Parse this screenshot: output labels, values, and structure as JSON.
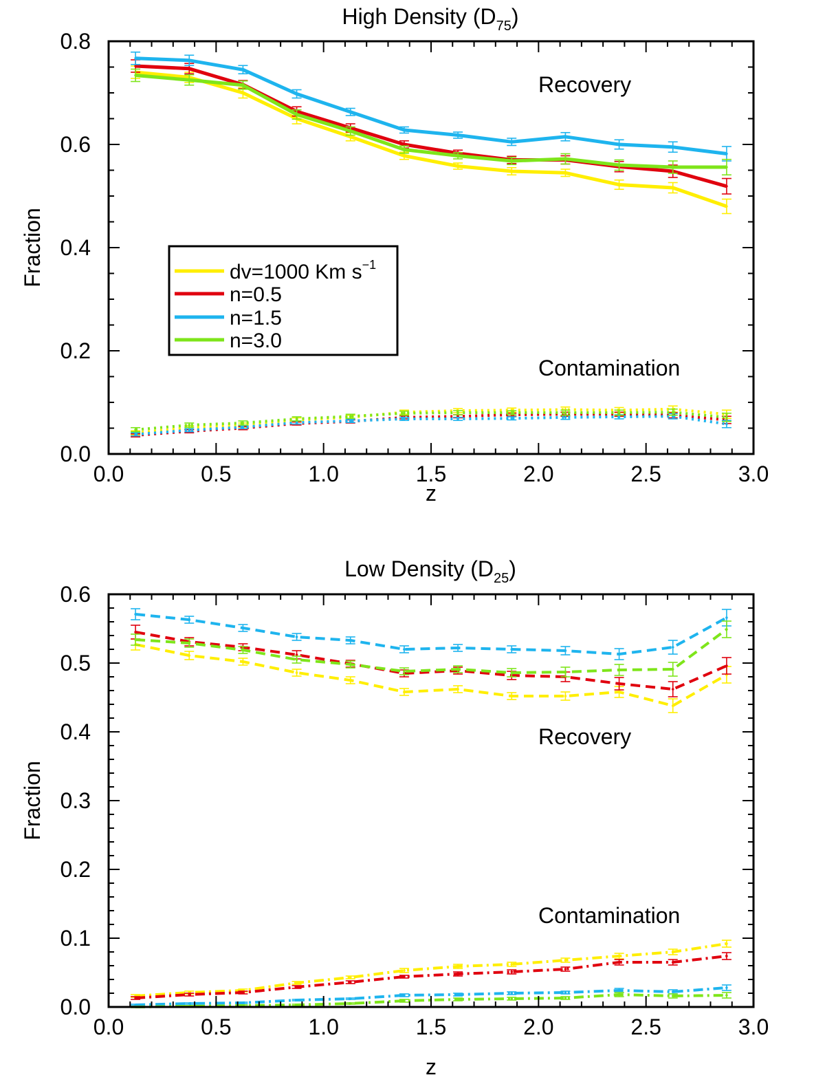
{
  "chart_data": [
    {
      "type": "line",
      "title": "High Density (D",
      "title_subscript": "75",
      "title_close": ")",
      "xlabel": "z",
      "ylabel": "Fraction",
      "xlim": [
        0.0,
        3.0
      ],
      "ylim": [
        0.0,
        0.8
      ],
      "xticks": [
        "0.0",
        "0.5",
        "1.0",
        "1.5",
        "2.0",
        "2.5",
        "3.0"
      ],
      "yticks": [
        "0.0",
        "0.2",
        "0.4",
        "0.6",
        "0.8"
      ],
      "annotations": [
        "Recovery",
        "Contamination"
      ],
      "legend": [
        {
          "label": "dv=1000 Km s",
          "sup": "−1",
          "color": "#ffee00"
        },
        {
          "label": "n=0.5",
          "color": "#e0000e"
        },
        {
          "label": "n=1.5",
          "color": "#1eb4ee"
        },
        {
          "label": "n=3.0",
          "color": "#7ee51a"
        }
      ],
      "x": [
        0.125,
        0.375,
        0.625,
        0.875,
        1.125,
        1.375,
        1.625,
        1.875,
        2.125,
        2.375,
        2.625,
        2.875
      ],
      "series": [
        {
          "name": "dv=1000 Km s-1 recovery",
          "color": "#ffee00",
          "dash": "solid",
          "values": [
            0.74,
            0.73,
            0.7,
            0.65,
            0.615,
            0.578,
            0.558,
            0.548,
            0.545,
            0.522,
            0.516,
            0.48
          ],
          "err": [
            0.012,
            0.01,
            0.01,
            0.01,
            0.008,
            0.007,
            0.006,
            0.007,
            0.007,
            0.009,
            0.01,
            0.014
          ]
        },
        {
          "name": "n=0.5 recovery",
          "color": "#e0000e",
          "dash": "solid",
          "values": [
            0.752,
            0.747,
            0.716,
            0.664,
            0.632,
            0.6,
            0.583,
            0.57,
            0.57,
            0.557,
            0.548,
            0.519
          ],
          "err": [
            0.012,
            0.01,
            0.008,
            0.009,
            0.008,
            0.007,
            0.006,
            0.007,
            0.008,
            0.01,
            0.012,
            0.015
          ]
        },
        {
          "name": "n=1.5 recovery",
          "color": "#1eb4ee",
          "dash": "solid",
          "values": [
            0.767,
            0.763,
            0.745,
            0.698,
            0.663,
            0.628,
            0.618,
            0.605,
            0.615,
            0.6,
            0.595,
            0.582
          ],
          "err": [
            0.012,
            0.01,
            0.008,
            0.008,
            0.007,
            0.006,
            0.006,
            0.007,
            0.008,
            0.009,
            0.01,
            0.014
          ]
        },
        {
          "name": "n=3.0 recovery",
          "color": "#7ee51a",
          "dash": "solid",
          "values": [
            0.734,
            0.725,
            0.715,
            0.658,
            0.626,
            0.59,
            0.578,
            0.568,
            0.572,
            0.56,
            0.556,
            0.556
          ],
          "err": [
            0.012,
            0.01,
            0.008,
            0.009,
            0.008,
            0.007,
            0.006,
            0.007,
            0.01,
            0.01,
            0.012,
            0.015
          ]
        },
        {
          "name": "dv=1000 Km s-1 contamination",
          "color": "#ffee00",
          "dash": "dotted",
          "values": [
            0.041,
            0.051,
            0.056,
            0.066,
            0.071,
            0.081,
            0.084,
            0.085,
            0.086,
            0.085,
            0.087,
            0.077
          ],
          "err": [
            0.004,
            0.004,
            0.004,
            0.004,
            0.004,
            0.004,
            0.004,
            0.004,
            0.005,
            0.005,
            0.006,
            0.008
          ]
        },
        {
          "name": "n=0.5 contamination",
          "color": "#e0000e",
          "dash": "dotted",
          "values": [
            0.036,
            0.044,
            0.05,
            0.059,
            0.063,
            0.071,
            0.073,
            0.076,
            0.077,
            0.077,
            0.075,
            0.066
          ],
          "err": [
            0.003,
            0.003,
            0.003,
            0.003,
            0.003,
            0.003,
            0.003,
            0.003,
            0.004,
            0.004,
            0.005,
            0.007
          ]
        },
        {
          "name": "n=1.5 contamination",
          "color": "#1eb4ee",
          "dash": "dotted",
          "values": [
            0.038,
            0.046,
            0.052,
            0.061,
            0.064,
            0.068,
            0.068,
            0.069,
            0.071,
            0.072,
            0.073,
            0.058
          ],
          "err": [
            0.003,
            0.003,
            0.003,
            0.003,
            0.003,
            0.003,
            0.003,
            0.003,
            0.004,
            0.004,
            0.005,
            0.007
          ]
        },
        {
          "name": "n=3.0 contamination",
          "color": "#7ee51a",
          "dash": "dotted",
          "values": [
            0.047,
            0.056,
            0.06,
            0.068,
            0.073,
            0.079,
            0.08,
            0.08,
            0.08,
            0.08,
            0.081,
            0.071
          ],
          "err": [
            0.004,
            0.004,
            0.004,
            0.004,
            0.004,
            0.004,
            0.004,
            0.004,
            0.005,
            0.005,
            0.006,
            0.008
          ]
        }
      ]
    },
    {
      "type": "line",
      "title": "Low Density (D",
      "title_subscript": "25",
      "title_close": ")",
      "xlabel": "z",
      "ylabel": "Fraction",
      "xlim": [
        0.0,
        3.0
      ],
      "ylim": [
        0.0,
        0.6
      ],
      "xticks": [
        "0.0",
        "0.5",
        "1.0",
        "1.5",
        "2.0",
        "2.5",
        "3.0"
      ],
      "yticks": [
        "0.0",
        "0.1",
        "0.2",
        "0.3",
        "0.4",
        "0.5",
        "0.6"
      ],
      "annotations": [
        "Recovery",
        "Contamination"
      ],
      "x": [
        0.125,
        0.375,
        0.625,
        0.875,
        1.125,
        1.375,
        1.625,
        1.875,
        2.125,
        2.375,
        2.625,
        2.875
      ],
      "series": [
        {
          "name": "dv=1000 Km s-1 recovery",
          "color": "#ffee00",
          "dash": "dashed",
          "values": [
            0.527,
            0.511,
            0.502,
            0.486,
            0.475,
            0.458,
            0.462,
            0.452,
            0.452,
            0.458,
            0.438,
            0.483
          ],
          "err": [
            0.008,
            0.006,
            0.005,
            0.005,
            0.005,
            0.005,
            0.005,
            0.005,
            0.006,
            0.008,
            0.01,
            0.012
          ]
        },
        {
          "name": "n=0.5 recovery",
          "color": "#e0000e",
          "dash": "dashed",
          "values": [
            0.545,
            0.531,
            0.523,
            0.512,
            0.499,
            0.485,
            0.489,
            0.482,
            0.48,
            0.47,
            0.462,
            0.496
          ],
          "err": [
            0.01,
            0.006,
            0.005,
            0.006,
            0.005,
            0.005,
            0.005,
            0.006,
            0.007,
            0.009,
            0.011,
            0.012
          ]
        },
        {
          "name": "n=1.5 recovery",
          "color": "#1eb4ee",
          "dash": "dashed",
          "values": [
            0.571,
            0.563,
            0.551,
            0.538,
            0.533,
            0.52,
            0.522,
            0.52,
            0.518,
            0.513,
            0.523,
            0.566
          ],
          "err": [
            0.008,
            0.005,
            0.005,
            0.005,
            0.005,
            0.005,
            0.005,
            0.005,
            0.006,
            0.008,
            0.01,
            0.012
          ]
        },
        {
          "name": "n=3.0 recovery",
          "color": "#7ee51a",
          "dash": "dashed",
          "values": [
            0.534,
            0.529,
            0.519,
            0.505,
            0.498,
            0.488,
            0.491,
            0.486,
            0.487,
            0.49,
            0.491,
            0.549
          ],
          "err": [
            0.008,
            0.006,
            0.005,
            0.005,
            0.005,
            0.005,
            0.005,
            0.006,
            0.007,
            0.008,
            0.01,
            0.012
          ]
        },
        {
          "name": "dv=1000 Km s-1 contamination",
          "color": "#ffee00",
          "dash": "dashdot",
          "values": [
            0.016,
            0.021,
            0.024,
            0.035,
            0.043,
            0.053,
            0.059,
            0.062,
            0.068,
            0.074,
            0.08,
            0.092
          ],
          "err": [
            0.002,
            0.002,
            0.002,
            0.002,
            0.002,
            0.003,
            0.003,
            0.003,
            0.003,
            0.004,
            0.004,
            0.005
          ]
        },
        {
          "name": "n=0.5 contamination",
          "color": "#e0000e",
          "dash": "dashdot",
          "values": [
            0.013,
            0.018,
            0.021,
            0.029,
            0.036,
            0.044,
            0.048,
            0.051,
            0.055,
            0.065,
            0.065,
            0.074
          ],
          "err": [
            0.002,
            0.002,
            0.002,
            0.002,
            0.002,
            0.002,
            0.003,
            0.003,
            0.003,
            0.004,
            0.004,
            0.005
          ]
        },
        {
          "name": "n=1.5 contamination",
          "color": "#1eb4ee",
          "dash": "dashdot",
          "values": [
            0.003,
            0.005,
            0.006,
            0.01,
            0.012,
            0.017,
            0.018,
            0.02,
            0.021,
            0.024,
            0.022,
            0.028
          ],
          "err": [
            0.001,
            0.001,
            0.001,
            0.001,
            0.001,
            0.002,
            0.002,
            0.002,
            0.002,
            0.003,
            0.003,
            0.004
          ]
        },
        {
          "name": "n=3.0 contamination",
          "color": "#7ee51a",
          "dash": "dashdot",
          "values": [
            0.0,
            0.001,
            0.002,
            0.003,
            0.005,
            0.009,
            0.011,
            0.012,
            0.013,
            0.018,
            0.016,
            0.017
          ],
          "err": [
            0.001,
            0.001,
            0.001,
            0.001,
            0.001,
            0.002,
            0.002,
            0.002,
            0.002,
            0.003,
            0.003,
            0.004
          ]
        }
      ]
    }
  ]
}
